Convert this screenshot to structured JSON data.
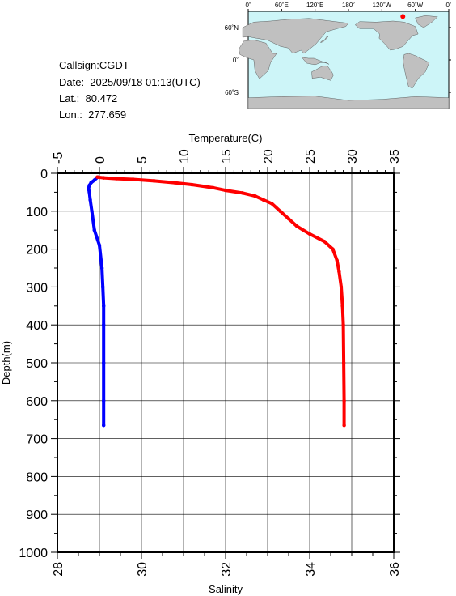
{
  "header": {
    "callsign": "Callsign:CGDT",
    "date": "Date:  2025/09/18 01:13(UTC)",
    "lat": "Lat.:  80.472",
    "lon": "Lon.:  277.659"
  },
  "map": {
    "lon_labels": [
      "0˚",
      "60˚E",
      "120˚E",
      "180˚",
      "120˚W",
      "60˚W",
      "0˚"
    ],
    "lat_labels": [
      "60˚N",
      "0˚",
      "60˚S"
    ],
    "colors": {
      "ocean": "#cdf5f8",
      "land": "#c0c0c0",
      "marker": "#ff0000"
    },
    "station": {
      "lat": 80.472,
      "lon": 277.659
    }
  },
  "chart_data": {
    "type": "line",
    "y_axis": {
      "label": "Depth(m)",
      "range": [
        0,
        1000
      ],
      "reversed": true,
      "ticks": [
        0,
        100,
        200,
        300,
        400,
        500,
        600,
        700,
        800,
        900,
        1000
      ]
    },
    "top_axis": {
      "label": "Temperature(C)",
      "range": [
        -5,
        35
      ],
      "ticks": [
        "-5",
        "0",
        "5",
        "10",
        "15",
        "20",
        "25",
        "30",
        "35"
      ]
    },
    "bottom_axis": {
      "label": "Salinity",
      "range": [
        28,
        36
      ],
      "ticks": [
        "28",
        "30",
        "32",
        "34",
        "36"
      ]
    },
    "grid": true,
    "series": [
      {
        "axis": "temperature",
        "color": "#0000ff",
        "points": [
          {
            "depth": 10,
            "value": -0.2
          },
          {
            "depth": 18,
            "value": -0.6
          },
          {
            "depth": 25,
            "value": -1.0
          },
          {
            "depth": 32,
            "value": -1.2
          },
          {
            "depth": 40,
            "value": -1.3
          },
          {
            "depth": 50,
            "value": -1.2
          },
          {
            "depth": 70,
            "value": -1.1
          },
          {
            "depth": 100,
            "value": -0.9
          },
          {
            "depth": 150,
            "value": -0.6
          },
          {
            "depth": 190,
            "value": 0.0
          },
          {
            "depth": 250,
            "value": 0.3
          },
          {
            "depth": 300,
            "value": 0.4
          },
          {
            "depth": 350,
            "value": 0.5
          },
          {
            "depth": 400,
            "value": 0.5
          },
          {
            "depth": 500,
            "value": 0.5
          },
          {
            "depth": 600,
            "value": 0.5
          },
          {
            "depth": 665,
            "value": 0.5
          }
        ]
      },
      {
        "axis": "salinity",
        "color": "#ff0000",
        "points": [
          {
            "depth": 10,
            "value": 28.95
          },
          {
            "depth": 12,
            "value": 29.1
          },
          {
            "depth": 14,
            "value": 29.4
          },
          {
            "depth": 16,
            "value": 29.8
          },
          {
            "depth": 20,
            "value": 30.3
          },
          {
            "depth": 25,
            "value": 30.8
          },
          {
            "depth": 30,
            "value": 31.2
          },
          {
            "depth": 38,
            "value": 31.7
          },
          {
            "depth": 45,
            "value": 32.0
          },
          {
            "depth": 52,
            "value": 32.4
          },
          {
            "depth": 60,
            "value": 32.7
          },
          {
            "depth": 70,
            "value": 32.9
          },
          {
            "depth": 80,
            "value": 33.1
          },
          {
            "depth": 100,
            "value": 33.3
          },
          {
            "depth": 120,
            "value": 33.5
          },
          {
            "depth": 140,
            "value": 33.7
          },
          {
            "depth": 160,
            "value": 34.0
          },
          {
            "depth": 180,
            "value": 34.35
          },
          {
            "depth": 200,
            "value": 34.55
          },
          {
            "depth": 230,
            "value": 34.65
          },
          {
            "depth": 260,
            "value": 34.7
          },
          {
            "depth": 300,
            "value": 34.75
          },
          {
            "depth": 350,
            "value": 34.78
          },
          {
            "depth": 400,
            "value": 34.8
          },
          {
            "depth": 500,
            "value": 34.81
          },
          {
            "depth": 600,
            "value": 34.82
          },
          {
            "depth": 665,
            "value": 34.82
          }
        ]
      }
    ]
  }
}
